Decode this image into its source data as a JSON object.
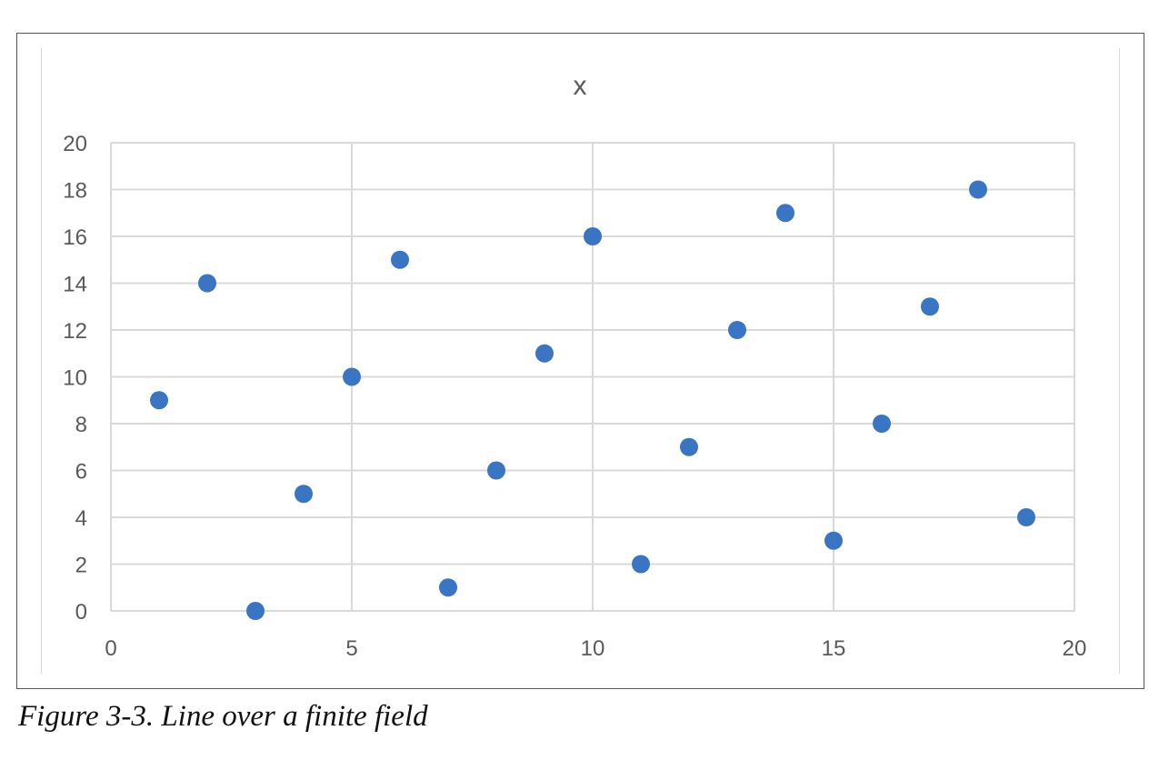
{
  "chart_data": {
    "type": "scatter",
    "title": "x",
    "xlabel": "",
    "ylabel": "",
    "xlim": [
      0,
      20
    ],
    "ylim": [
      0,
      20
    ],
    "x_ticks": [
      0,
      5,
      10,
      15,
      20
    ],
    "y_ticks": [
      0,
      2,
      4,
      6,
      8,
      10,
      12,
      14,
      16,
      18,
      20
    ],
    "grid": true,
    "marker_color": "#3a75c4",
    "points": [
      [
        1,
        9
      ],
      [
        2,
        14
      ],
      [
        3,
        0
      ],
      [
        4,
        5
      ],
      [
        5,
        10
      ],
      [
        6,
        15
      ],
      [
        7,
        1
      ],
      [
        8,
        6
      ],
      [
        9,
        11
      ],
      [
        10,
        16
      ],
      [
        11,
        2
      ],
      [
        12,
        7
      ],
      [
        13,
        12
      ],
      [
        14,
        17
      ],
      [
        15,
        3
      ],
      [
        16,
        8
      ],
      [
        17,
        13
      ],
      [
        18,
        18
      ],
      [
        19,
        4
      ]
    ]
  },
  "caption": "Figure 3-3. Line over a finite field"
}
